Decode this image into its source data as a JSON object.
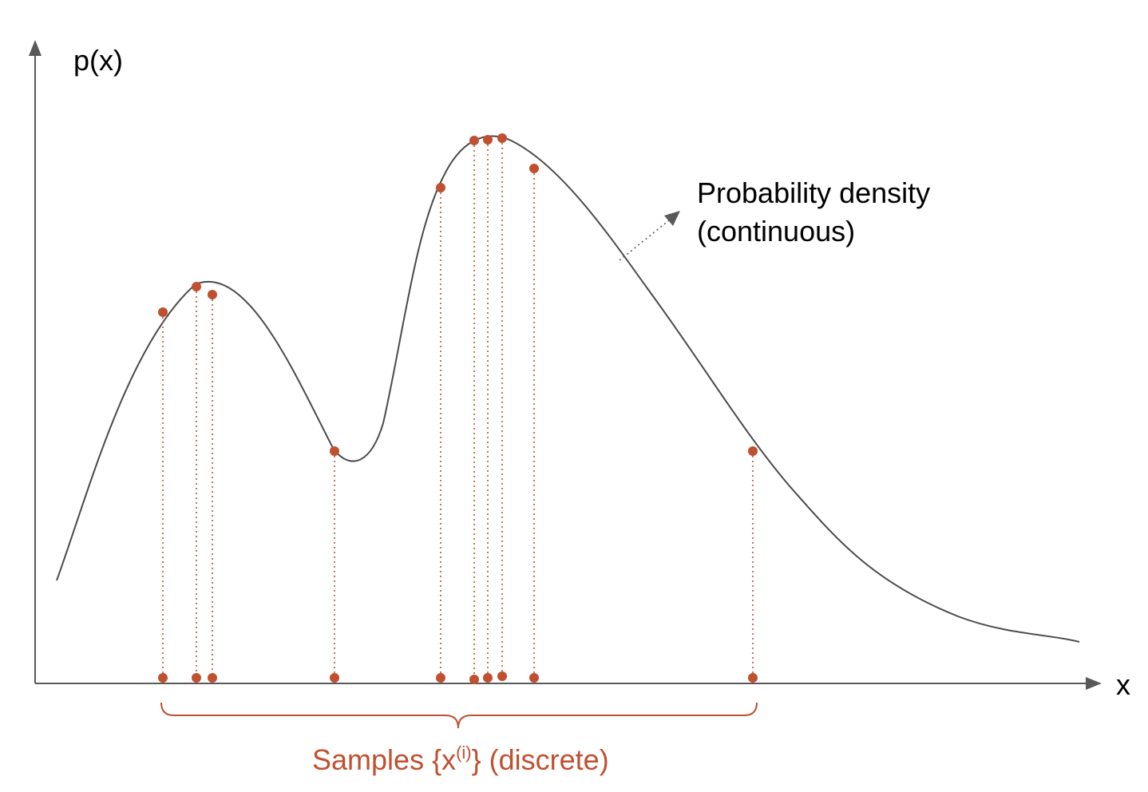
{
  "axes": {
    "y_label": "p(x)",
    "x_label": "x"
  },
  "density_label": {
    "line1": "Probability density",
    "line2": "(continuous)"
  },
  "samples_label": {
    "prefix": "Samples {x",
    "superscript": "(i)",
    "suffix": "} (discrete)"
  },
  "colors": {
    "sample": "#c0502f",
    "curve": "#4a4a4a",
    "axis": "#595959"
  }
}
